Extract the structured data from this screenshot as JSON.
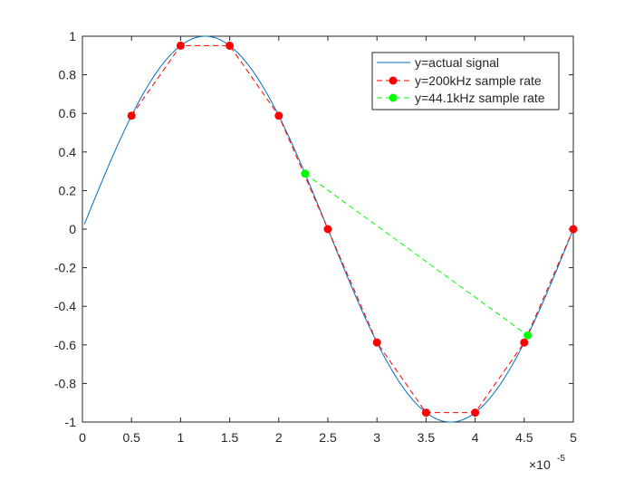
{
  "chart_data": {
    "type": "line",
    "title": "",
    "xlabel": "",
    "ylabel": "",
    "xlim": [
      0,
      5e-05
    ],
    "ylim": [
      -1,
      1
    ],
    "x_exponent_label": "×10",
    "x_exponent": "-5",
    "xticks": [
      0,
      0.5,
      1,
      1.5,
      2,
      2.5,
      3,
      3.5,
      4,
      4.5,
      5
    ],
    "xtick_labels": [
      "0",
      "0.5",
      "1",
      "1.5",
      "2",
      "2.5",
      "3",
      "3.5",
      "4",
      "4.5",
      "5"
    ],
    "yticks": [
      -1,
      -0.8,
      -0.6,
      -0.4,
      -0.2,
      0,
      0.2,
      0.4,
      0.6,
      0.8,
      1
    ],
    "ytick_labels": [
      "-1",
      "-0.8",
      "-0.6",
      "-0.4",
      "-0.2",
      "0",
      "0.2",
      "0.4",
      "0.6",
      "0.8",
      "1"
    ],
    "grid": false,
    "legend_position": "top-right",
    "series": [
      {
        "name": "y=actual signal",
        "type": "line",
        "color": "#0072BD",
        "frequency_hz": 20000,
        "x_start": 2e-07,
        "x_end": 5e-05
      },
      {
        "name": "y=200kHz sample rate",
        "type": "dashed-line-markers",
        "color": "#FF0000",
        "x": [
          5e-06,
          1e-05,
          1.5e-05,
          2e-05,
          2.5e-05,
          3e-05,
          3.5e-05,
          4e-05,
          4.5e-05,
          5e-05
        ],
        "y": [
          0.588,
          0.951,
          0.951,
          0.588,
          0,
          -0.588,
          -0.951,
          -0.951,
          -0.588,
          0
        ]
      },
      {
        "name": "y=44.1kHz sample rate",
        "type": "dashed-line-markers",
        "color": "#00FF00",
        "x": [
          2.2676e-05,
          4.5351e-05
        ],
        "y": [
          0.288,
          -0.551
        ]
      }
    ]
  }
}
